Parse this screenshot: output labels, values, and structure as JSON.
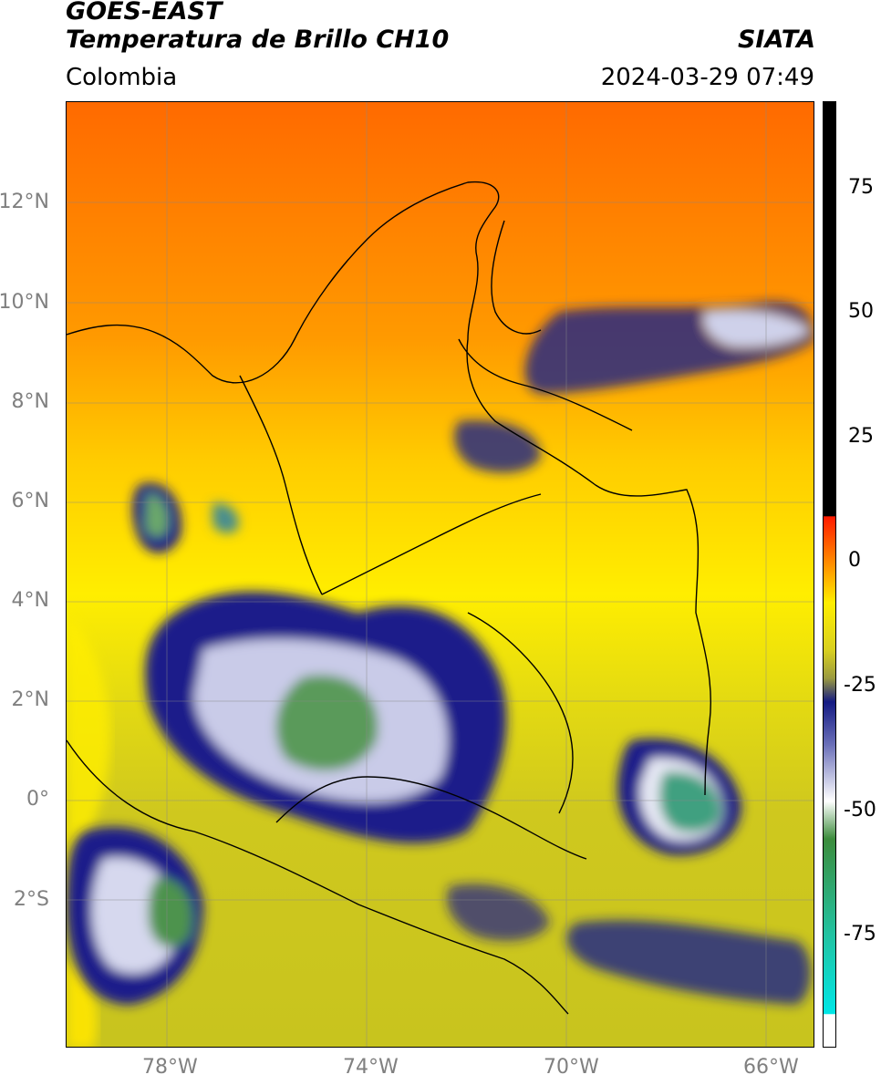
{
  "header": {
    "satellite": "GOES-EAST",
    "product": "Temperatura de Brillo CH10",
    "region": "Colombia",
    "source": "SIATA",
    "datetime": "2024-03-29 07:49"
  },
  "map": {
    "lat_labels": [
      "12°N",
      "10°N",
      "8°N",
      "6°N",
      "4°N",
      "2°N",
      "0°",
      "2°S"
    ],
    "lon_labels": [
      "78°W",
      "74°W",
      "70°W",
      "66°W"
    ]
  },
  "colorbar": {
    "ticks": [
      "75",
      "50",
      "25",
      "0",
      "-25",
      "-50",
      "-75"
    ],
    "colors": {
      "black": "#000000",
      "red": "#ff1a00",
      "orange": "#ff7a00",
      "yellow": "#ffee00",
      "olive": "#c8c81e",
      "darkblue": "#141a82",
      "white": "#ffffff",
      "green": "#3c8c3c",
      "teal": "#22c2a0",
      "cyan": "#00e6e6"
    }
  }
}
